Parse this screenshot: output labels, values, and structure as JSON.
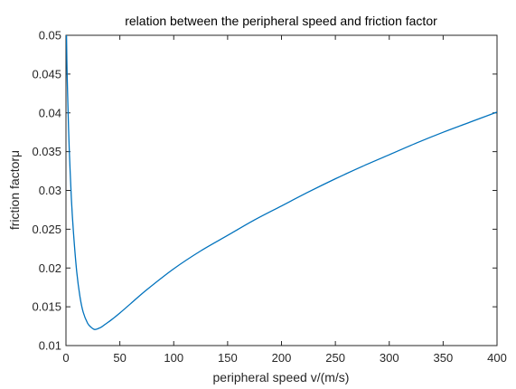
{
  "chart_data": {
    "type": "line",
    "title": "relation between the peripheral speed and friction factor",
    "xlabel": "peripheral speed v/(m/s)",
    "ylabel": "friction factorμ",
    "xlim": [
      0,
      400
    ],
    "ylim": [
      0.01,
      0.05
    ],
    "xticks": [
      0,
      50,
      100,
      150,
      200,
      250,
      300,
      350,
      400
    ],
    "xtick_labels": [
      "0",
      "50",
      "100",
      "150",
      "200",
      "250",
      "300",
      "350",
      "400"
    ],
    "yticks": [
      0.01,
      0.015,
      0.02,
      0.025,
      0.03,
      0.035,
      0.04,
      0.045,
      0.05
    ],
    "ytick_labels": [
      "0.01",
      "0.015",
      "0.02",
      "0.025",
      "0.03",
      "0.035",
      "0.04",
      "0.045",
      "0.05"
    ],
    "grid": false,
    "box": true,
    "series_color": "#0072BD",
    "series": [
      {
        "x": [
          0.5,
          1,
          2,
          3,
          5,
          7,
          10,
          13,
          16,
          20,
          23,
          26,
          28,
          30,
          33,
          37,
          42,
          50,
          60,
          75,
          100,
          125,
          150,
          175,
          200,
          225,
          250,
          275,
          300,
          325,
          350,
          375,
          400
        ],
        "y": [
          0.05,
          0.0455,
          0.04,
          0.0355,
          0.029,
          0.0245,
          0.0195,
          0.0163,
          0.0143,
          0.0129,
          0.0124,
          0.0121,
          0.0121,
          0.0122,
          0.0124,
          0.0128,
          0.0133,
          0.0142,
          0.0154,
          0.0172,
          0.0199,
          0.0222,
          0.0242,
          0.0262,
          0.028,
          0.0298,
          0.0315,
          0.0331,
          0.0346,
          0.0361,
          0.0375,
          0.0388,
          0.0401
        ]
      }
    ]
  }
}
